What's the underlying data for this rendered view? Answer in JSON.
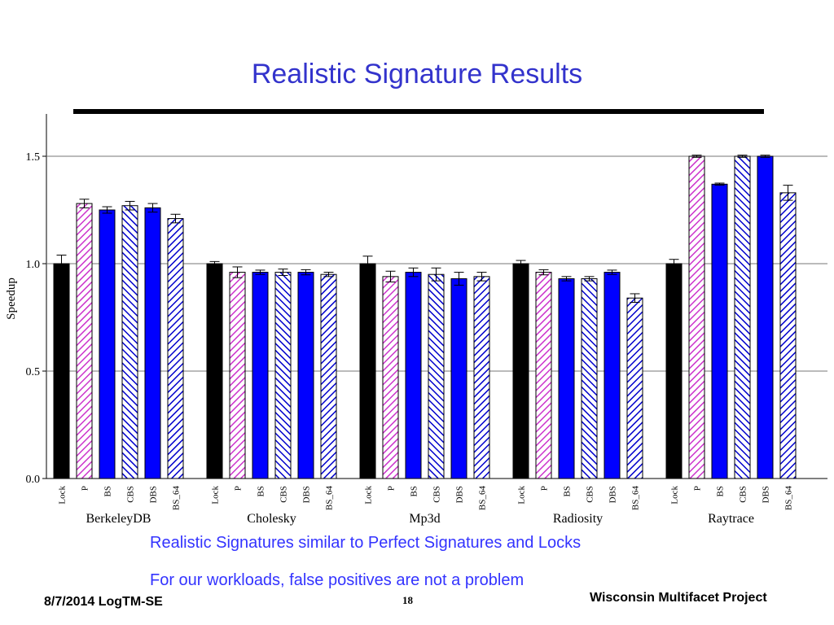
{
  "slide": {
    "title": "Realistic Signature Results",
    "notes": [
      "Realistic Signatures similar to Perfect Signatures and Locks",
      "For our workloads, false positives are not a problem"
    ],
    "footer": {
      "left": "8/7/2014 LogTM-SE",
      "center": "18",
      "right": "Wisconsin Multifacet Project"
    }
  },
  "chart_data": {
    "type": "bar",
    "ylabel": "Speedup",
    "ylim": [
      0,
      1.7
    ],
    "yticks": [
      "0.0",
      "0.5",
      "1.0",
      "1.5"
    ],
    "grid": true,
    "bar_labels": [
      "Lock",
      "P",
      "BS",
      "CBS",
      "DBS",
      "BS_64"
    ],
    "styles": {
      "Lock": {
        "fill": "solid",
        "color": "#000000"
      },
      "P": {
        "fill": "hatch-forward",
        "color": "#cc33cc"
      },
      "BS": {
        "fill": "solid",
        "color": "#0000ff"
      },
      "CBS": {
        "fill": "hatch-back",
        "color": "#0000cc"
      },
      "DBS": {
        "fill": "solid",
        "color": "#0000ff"
      },
      "BS_64": {
        "fill": "hatch-forward",
        "color": "#0000cc"
      }
    },
    "groups": [
      {
        "name": "BerkeleyDB",
        "values": [
          1.0,
          1.28,
          1.25,
          1.27,
          1.26,
          1.21
        ],
        "errors": [
          0.04,
          0.02,
          0.015,
          0.02,
          0.02,
          0.02
        ]
      },
      {
        "name": "Cholesky",
        "values": [
          1.0,
          0.96,
          0.96,
          0.96,
          0.96,
          0.95
        ],
        "errors": [
          0.01,
          0.025,
          0.01,
          0.015,
          0.012,
          0.01
        ]
      },
      {
        "name": "Mp3d",
        "values": [
          1.0,
          0.94,
          0.96,
          0.95,
          0.93,
          0.94
        ],
        "errors": [
          0.035,
          0.025,
          0.02,
          0.03,
          0.03,
          0.02
        ]
      },
      {
        "name": "Radiosity",
        "values": [
          1.0,
          0.96,
          0.93,
          0.93,
          0.96,
          0.84
        ],
        "errors": [
          0.015,
          0.012,
          0.01,
          0.01,
          0.01,
          0.02
        ]
      },
      {
        "name": "Raytrace",
        "values": [
          1.0,
          1.5,
          1.37,
          1.5,
          1.5,
          1.33
        ],
        "errors": [
          0.02,
          0.005,
          0.005,
          0.005,
          0.005,
          0.035
        ]
      }
    ]
  }
}
